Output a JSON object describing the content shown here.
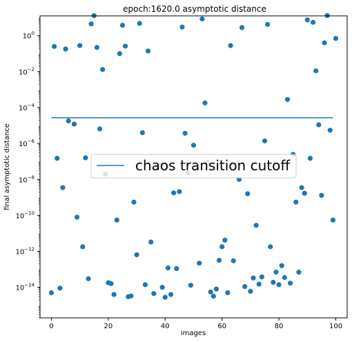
{
  "chart_data": {
    "type": "scatter",
    "title": "epoch:1620.0 asymptotic distance",
    "xlabel": "images",
    "ylabel": "final asymptotic distance",
    "yscale": "log",
    "xlim": [
      -4,
      104
    ],
    "ylim_exponent": [
      -15.7,
      1.1
    ],
    "xticks": [
      0,
      20,
      40,
      60,
      80,
      100
    ],
    "xtick_labels": [
      "0",
      "20",
      "40",
      "60",
      "80",
      "100"
    ],
    "yticks_exponent": [
      0,
      -2,
      -4,
      -6,
      -8,
      -10,
      -12,
      -14
    ],
    "ytick_base": "10",
    "marker_color": "#1f77b4",
    "line_color": "#1f77b4",
    "cutoff": {
      "label": "chaos transition cutoff",
      "value": 2.7e-05,
      "x_range": [
        0,
        99
      ]
    },
    "legend_position": "center-left",
    "grid": false,
    "points": [
      {
        "x": 0,
        "y": 5e-15
      },
      {
        "x": 1,
        "y": 0.25
      },
      {
        "x": 2,
        "y": 1.5e-07
      },
      {
        "x": 3,
        "y": 9e-15
      },
      {
        "x": 4,
        "y": 3.5e-09
      },
      {
        "x": 5,
        "y": 0.18
      },
      {
        "x": 6,
        "y": 1.8e-05
      },
      {
        "x": 8,
        "y": 1.2e-05
      },
      {
        "x": 9,
        "y": 8e-11
      },
      {
        "x": 10,
        "y": 0.28
      },
      {
        "x": 11,
        "y": 1.8e-12
      },
      {
        "x": 12,
        "y": 1.6e-07
      },
      {
        "x": 13,
        "y": 3e-14
      },
      {
        "x": 14,
        "y": 4.5
      },
      {
        "x": 15,
        "y": 13
      },
      {
        "x": 16,
        "y": 0.22
      },
      {
        "x": 17,
        "y": 6.5e-06
      },
      {
        "x": 18,
        "y": 0.013
      },
      {
        "x": 19,
        "y": 2e-08
      },
      {
        "x": 20,
        "y": 1.8e-14
      },
      {
        "x": 21,
        "y": 1.6e-14
      },
      {
        "x": 22,
        "y": 4e-15
      },
      {
        "x": 23,
        "y": 5.5e-11
      },
      {
        "x": 24,
        "y": 0.1
      },
      {
        "x": 25,
        "y": 3.8
      },
      {
        "x": 26,
        "y": 0.26
      },
      {
        "x": 27,
        "y": 3e-15
      },
      {
        "x": 28,
        "y": 3.3e-15
      },
      {
        "x": 29,
        "y": 5.5e-10
      },
      {
        "x": 30,
        "y": 6.5e-13
      },
      {
        "x": 31,
        "y": 4.8
      },
      {
        "x": 32,
        "y": 4e-06
      },
      {
        "x": 33,
        "y": 1.4e-14
      },
      {
        "x": 34,
        "y": 0.14
      },
      {
        "x": 35,
        "y": 3.3e-12
      },
      {
        "x": 36,
        "y": 4.5e-15
      },
      {
        "x": 38,
        "y": 6.5e-08
      },
      {
        "x": 39,
        "y": 1e-14
      },
      {
        "x": 40,
        "y": 2.8e-15
      },
      {
        "x": 41,
        "y": 1.2e-13
      },
      {
        "x": 42,
        "y": 4e-15
      },
      {
        "x": 43,
        "y": 1.8e-09
      },
      {
        "x": 44,
        "y": 1.1e-13
      },
      {
        "x": 45,
        "y": 2.1e-09
      },
      {
        "x": 46,
        "y": 3
      },
      {
        "x": 47,
        "y": 3.7e-06
      },
      {
        "x": 48,
        "y": 2.3e-08
      },
      {
        "x": 49,
        "y": 1.3e-14
      },
      {
        "x": 50,
        "y": 8e-07
      },
      {
        "x": 52,
        "y": 2.2e-13
      },
      {
        "x": 53,
        "y": 8.5
      },
      {
        "x": 54,
        "y": 0.00018
      },
      {
        "x": 55,
        "y": 9e-08
      },
      {
        "x": 56,
        "y": 5.5e-15
      },
      {
        "x": 57,
        "y": 3.2e-15
      },
      {
        "x": 58,
        "y": 8e-15
      },
      {
        "x": 59,
        "y": 3.2e-13
      },
      {
        "x": 60,
        "y": 1.8e-12
      },
      {
        "x": 61,
        "y": 4.2e-12
      },
      {
        "x": 62,
        "y": 5e-15
      },
      {
        "x": 63,
        "y": 0.28
      },
      {
        "x": 64,
        "y": 3e-13
      },
      {
        "x": 66,
        "y": 1e-08
      },
      {
        "x": 67,
        "y": 2.8
      },
      {
        "x": 68,
        "y": 1.1e-14
      },
      {
        "x": 69,
        "y": 1.6e-09
      },
      {
        "x": 70,
        "y": 6e-15
      },
      {
        "x": 71,
        "y": 3.3e-14
      },
      {
        "x": 72,
        "y": 2.8e-11
      },
      {
        "x": 73,
        "y": 1.5e-14
      },
      {
        "x": 74,
        "y": 3.8e-14
      },
      {
        "x": 75,
        "y": 1.4e-06
      },
      {
        "x": 76,
        "y": 4.2
      },
      {
        "x": 77,
        "y": 1.8e-12
      },
      {
        "x": 78,
        "y": 1.9e-14
      },
      {
        "x": 79,
        "y": 7e-14
      },
      {
        "x": 80,
        "y": 1.4e-14
      },
      {
        "x": 81,
        "y": 1.6e-13
      },
      {
        "x": 82,
        "y": 3.5e-14
      },
      {
        "x": 83,
        "y": 0.00028
      },
      {
        "x": 84,
        "y": 1.7e-14
      },
      {
        "x": 85,
        "y": 2.5e-07
      },
      {
        "x": 86,
        "y": 5.5e-10
      },
      {
        "x": 87,
        "y": 7e-14
      },
      {
        "x": 88,
        "y": 3.5e-09
      },
      {
        "x": 89,
        "y": 1.7e-09
      },
      {
        "x": 90,
        "y": 7.5
      },
      {
        "x": 91,
        "y": 1.5e-07
      },
      {
        "x": 92,
        "y": 5.5
      },
      {
        "x": 93,
        "y": 0.011
      },
      {
        "x": 94,
        "y": 1.1e-05
      },
      {
        "x": 95,
        "y": 1.3e-09
      },
      {
        "x": 96,
        "y": 0.4
      },
      {
        "x": 97,
        "y": 13
      },
      {
        "x": 98,
        "y": 5.5e-06
      },
      {
        "x": 99,
        "y": 5.5e-11
      },
      {
        "x": 100,
        "y": 0.7
      }
    ]
  }
}
